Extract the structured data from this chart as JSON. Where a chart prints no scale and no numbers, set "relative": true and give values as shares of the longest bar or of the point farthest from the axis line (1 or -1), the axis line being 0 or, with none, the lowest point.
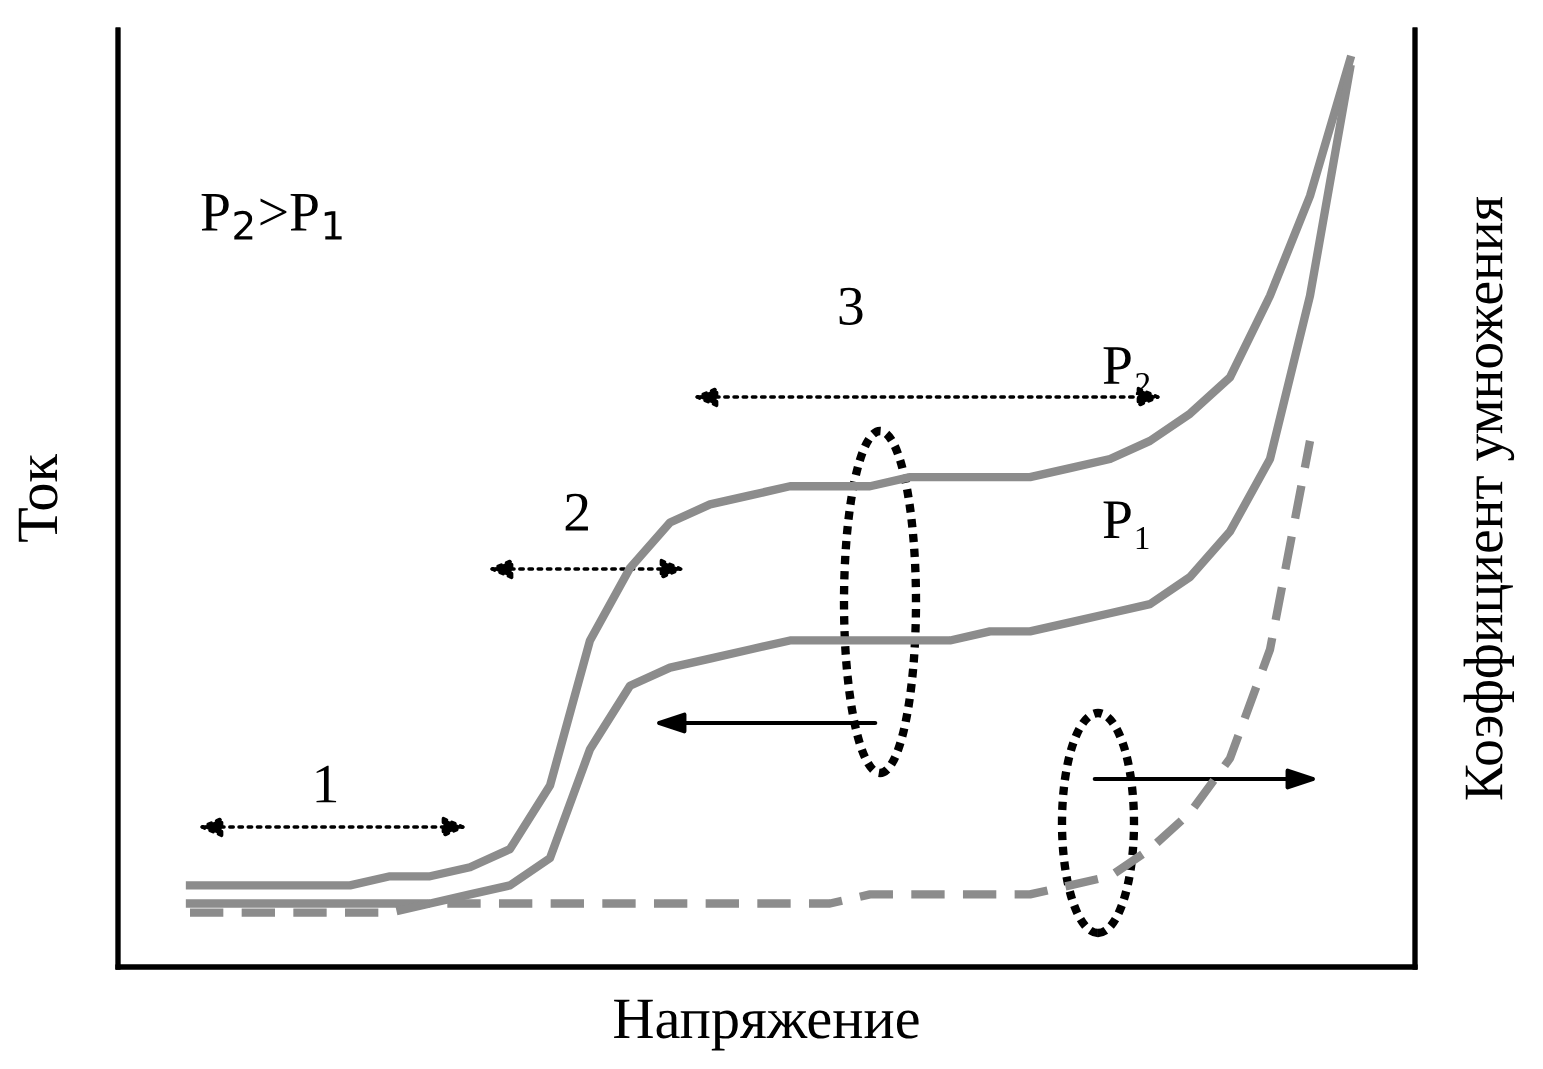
{
  "chart_data": {
    "type": "line",
    "relative": true,
    "categories": [
      null,
      null,
      null,
      null,
      null,
      null,
      null,
      null,
      null,
      null,
      null,
      null,
      null,
      null,
      null,
      null,
      null,
      null,
      null,
      null,
      null,
      null,
      null,
      null,
      null,
      null,
      null,
      null,
      null,
      null
    ],
    "series": [
      {
        "name": "P₂",
        "color": "#8c8c8c",
        "line_style": "solid",
        "values": [
          0.09,
          0.09,
          0.09,
          0.09,
          0.09,
          0.1,
          0.1,
          0.11,
          0.13,
          0.2,
          0.36,
          0.44,
          0.49,
          0.51,
          0.52,
          0.53,
          0.53,
          0.53,
          0.54,
          0.54,
          0.54,
          0.54,
          0.55,
          0.56,
          0.58,
          0.61,
          0.65,
          0.74,
          0.85,
          1.0
        ]
      },
      {
        "name": "P₁",
        "color": "#8c8c8c",
        "line_style": "solid",
        "values": [
          0.07,
          0.07,
          0.07,
          0.07,
          0.07,
          0.07,
          0.07,
          0.08,
          0.09,
          0.12,
          0.24,
          0.31,
          0.33,
          0.34,
          0.35,
          0.36,
          0.36,
          0.36,
          0.36,
          0.36,
          0.37,
          0.37,
          0.38,
          0.39,
          0.4,
          0.43,
          0.48,
          0.56,
          0.74,
          0.99
        ]
      },
      {
        "color": "#8c8c8c",
        "line_style": "dashed",
        "values": [
          0.06,
          0.06,
          0.06,
          0.06,
          0.06,
          0.06,
          0.07,
          0.07,
          0.07,
          0.07,
          0.07,
          0.07,
          0.07,
          0.07,
          0.07,
          0.07,
          0.07,
          0.08,
          0.08,
          0.08,
          0.08,
          0.08,
          0.09,
          0.1,
          0.13,
          0.17,
          0.23,
          0.35,
          0.58,
          null
        ]
      }
    ],
    "xlabel": "Напряжение",
    "ylabel": "Ток",
    "y2label": "Коэффициент умножения",
    "annotations": [
      "P$_{2}$>P$_{1}$",
      "1",
      "2",
      "3"
    ],
    "legend": false,
    "marker": "none"
  }
}
